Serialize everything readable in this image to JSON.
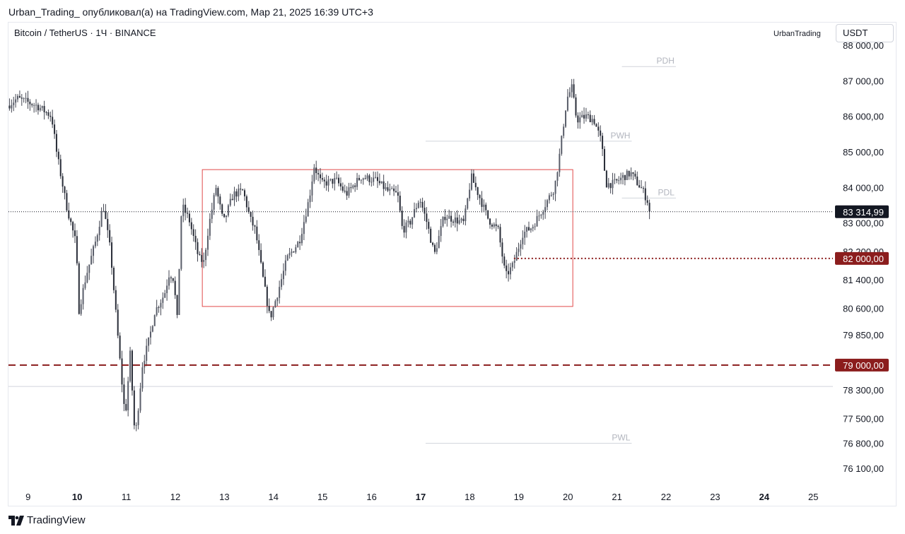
{
  "header": {
    "author": "Urban_Trading_",
    "published_text": "опубликовал(а) на TradingView.com, Мар 21, 2025 16:39 UTC+3"
  },
  "symbol_line": "Bitcoin / TetherUS · 1Ч · BINANCE",
  "author_tag": "UrbanTrading",
  "currency": "USDT",
  "footer": {
    "brand": "TradingView",
    "logo_icon": "tradingview-logo-icon"
  },
  "chart_data": {
    "type": "candlestick",
    "x_unit": "day of month (March 2025)",
    "xlim": [
      8.6,
      25.4
    ],
    "ylim": [
      75600,
      88000
    ],
    "y_ticks": [
      "88 000,00",
      "87 000,00",
      "86 000,00",
      "85 000,00",
      "84 000,00",
      "83 000,00",
      "82 200,00",
      "81 400,00",
      "80 600,00",
      "79 850,00",
      "78 300,00",
      "77 500,00",
      "76 800,00",
      "76 100,00"
    ],
    "y_tick_values": [
      88000,
      87000,
      86000,
      85000,
      84000,
      83000,
      82200,
      81400,
      80600,
      79850,
      78300,
      77500,
      76800,
      76100
    ],
    "x_ticks": [
      {
        "label": "9",
        "value": 9,
        "bold": false
      },
      {
        "label": "10",
        "value": 10,
        "bold": true
      },
      {
        "label": "11",
        "value": 11,
        "bold": false
      },
      {
        "label": "12",
        "value": 12,
        "bold": false
      },
      {
        "label": "13",
        "value": 13,
        "bold": false
      },
      {
        "label": "14",
        "value": 14,
        "bold": false
      },
      {
        "label": "15",
        "value": 15,
        "bold": false
      },
      {
        "label": "16",
        "value": 16,
        "bold": false
      },
      {
        "label": "17",
        "value": 17,
        "bold": true
      },
      {
        "label": "18",
        "value": 18,
        "bold": false
      },
      {
        "label": "19",
        "value": 19,
        "bold": false
      },
      {
        "label": "20",
        "value": 20,
        "bold": false
      },
      {
        "label": "21",
        "value": 21,
        "bold": false
      },
      {
        "label": "22",
        "value": 22,
        "bold": false
      },
      {
        "label": "23",
        "value": 23,
        "bold": false
      },
      {
        "label": "24",
        "value": 24,
        "bold": true
      },
      {
        "label": "25",
        "value": 25,
        "bold": false
      }
    ],
    "price_path": [
      [
        8.6,
        86300
      ],
      [
        8.8,
        86500
      ],
      [
        9.2,
        86300
      ],
      [
        9.5,
        86000
      ],
      [
        9.6,
        85000
      ],
      [
        9.8,
        83500
      ],
      [
        10.0,
        82400
      ],
      [
        10.05,
        80500
      ],
      [
        10.2,
        81500
      ],
      [
        10.4,
        82500
      ],
      [
        10.55,
        83500
      ],
      [
        10.7,
        82200
      ],
      [
        10.8,
        80600
      ],
      [
        10.9,
        79000
      ],
      [
        11.0,
        77500
      ],
      [
        11.1,
        79300
      ],
      [
        11.2,
        76900
      ],
      [
        11.35,
        79000
      ],
      [
        11.5,
        79800
      ],
      [
        11.6,
        80500
      ],
      [
        11.8,
        81000
      ],
      [
        11.9,
        81600
      ],
      [
        12.0,
        81400
      ],
      [
        12.05,
        80000
      ],
      [
        12.15,
        83500
      ],
      [
        12.3,
        83100
      ],
      [
        12.5,
        82000
      ],
      [
        12.6,
        81900
      ],
      [
        12.7,
        82900
      ],
      [
        12.85,
        84000
      ],
      [
        13.0,
        83000
      ],
      [
        13.2,
        83800
      ],
      [
        13.4,
        83900
      ],
      [
        13.55,
        83100
      ],
      [
        13.65,
        82800
      ],
      [
        13.8,
        81500
      ],
      [
        13.95,
        80300
      ],
      [
        14.1,
        81000
      ],
      [
        14.3,
        82000
      ],
      [
        14.55,
        82500
      ],
      [
        14.75,
        83700
      ],
      [
        14.85,
        84600
      ],
      [
        15.0,
        84100
      ],
      [
        15.3,
        84200
      ],
      [
        15.5,
        83800
      ],
      [
        15.8,
        84300
      ],
      [
        16.1,
        84200
      ],
      [
        16.35,
        83900
      ],
      [
        16.55,
        83800
      ],
      [
        16.65,
        82800
      ],
      [
        16.8,
        83000
      ],
      [
        17.0,
        83700
      ],
      [
        17.15,
        83000
      ],
      [
        17.3,
        82100
      ],
      [
        17.5,
        83200
      ],
      [
        17.7,
        83100
      ],
      [
        17.9,
        83000
      ],
      [
        18.05,
        84300
      ],
      [
        18.2,
        83800
      ],
      [
        18.4,
        83100
      ],
      [
        18.6,
        82800
      ],
      [
        18.75,
        81500
      ],
      [
        18.9,
        81800
      ],
      [
        19.1,
        82700
      ],
      [
        19.3,
        82900
      ],
      [
        19.55,
        83500
      ],
      [
        19.75,
        84000
      ],
      [
        19.85,
        84900
      ],
      [
        20.0,
        86500
      ],
      [
        20.1,
        86800
      ],
      [
        20.2,
        85900
      ],
      [
        20.4,
        86000
      ],
      [
        20.55,
        85900
      ],
      [
        20.7,
        85300
      ],
      [
        20.8,
        84100
      ],
      [
        20.95,
        84100
      ],
      [
        21.15,
        84300
      ],
      [
        21.3,
        84400
      ],
      [
        21.45,
        84100
      ],
      [
        21.55,
        83900
      ],
      [
        21.65,
        83600
      ],
      [
        21.68,
        83315
      ]
    ],
    "range_box": {
      "x_start": 12.55,
      "x_end": 20.1,
      "y_low": 80650,
      "y_high": 84500
    },
    "current_price": {
      "value": 83314.99,
      "label": "83 314,99",
      "color": "#131722"
    },
    "horizontal_levels": [
      {
        "label": "82 000,00",
        "value": 82000,
        "style": "dotted",
        "color": "#8b1d1d",
        "x_start": 18.9
      },
      {
        "label": "79 000,00",
        "value": 79000,
        "style": "dashed",
        "color": "#8b1d1d",
        "x_start": 8.6
      }
    ],
    "thin_levels": [
      {
        "name": "",
        "value": 78400,
        "x_start": 8.6,
        "x_end": 25.4
      },
      {
        "name": "PDH",
        "value": 87400,
        "x_start": 21.1,
        "x_end": 22.2
      },
      {
        "name": "PWH",
        "value": 85300,
        "x_start": 17.1,
        "x_end": 21.3
      },
      {
        "name": "PDL",
        "value": 83700,
        "x_start": 21.1,
        "x_end": 22.2
      },
      {
        "name": "PWL",
        "value": 76800,
        "x_start": 17.1,
        "x_end": 21.3
      }
    ],
    "colors": {
      "candle_up": "#5b5f6b",
      "candle_down": "#2a2e39",
      "box": "#e04a4a",
      "level_line": "#d1d4dc",
      "level_text": "#b2b5be",
      "badge_red": "#8b1d1d",
      "badge_dark": "#131722"
    }
  }
}
